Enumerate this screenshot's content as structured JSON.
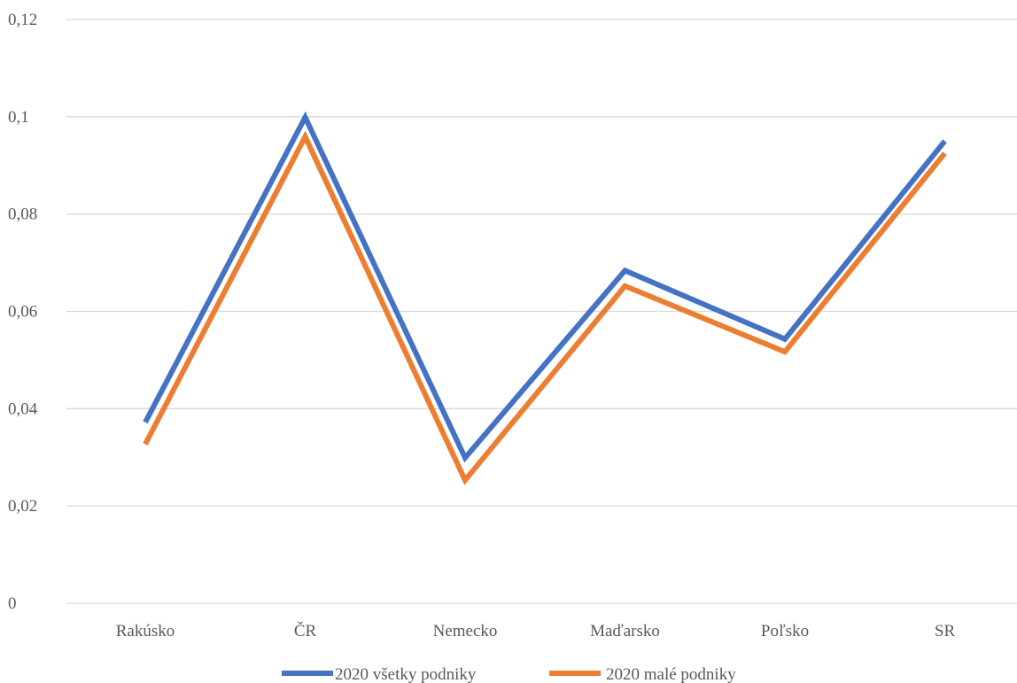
{
  "chart_data": {
    "type": "line",
    "title": "",
    "xlabel": "",
    "ylabel": "",
    "categories": [
      "Rakúsko",
      "ČR",
      "Nemecko",
      "Maďarsko",
      "Poľsko",
      "SR"
    ],
    "ylim": [
      0,
      0.12
    ],
    "yticks": [
      0,
      0.02,
      0.04,
      0.06,
      0.08,
      0.1,
      0.12
    ],
    "ytick_labels": [
      "0",
      "0,02",
      "0,04",
      "0,06",
      "0,08",
      "0,1",
      "0,12"
    ],
    "grid": true,
    "legend_position": "bottom",
    "series": [
      {
        "name": "2020 všetky podniky",
        "color": "#4472C4",
        "values": [
          0.0372,
          0.0999,
          0.0299,
          0.0684,
          0.0543,
          0.095
        ]
      },
      {
        "name": "2020 malé podniky",
        "color": "#ED7D31",
        "values": [
          0.0327,
          0.0959,
          0.0253,
          0.0652,
          0.0517,
          0.0925
        ]
      }
    ]
  }
}
